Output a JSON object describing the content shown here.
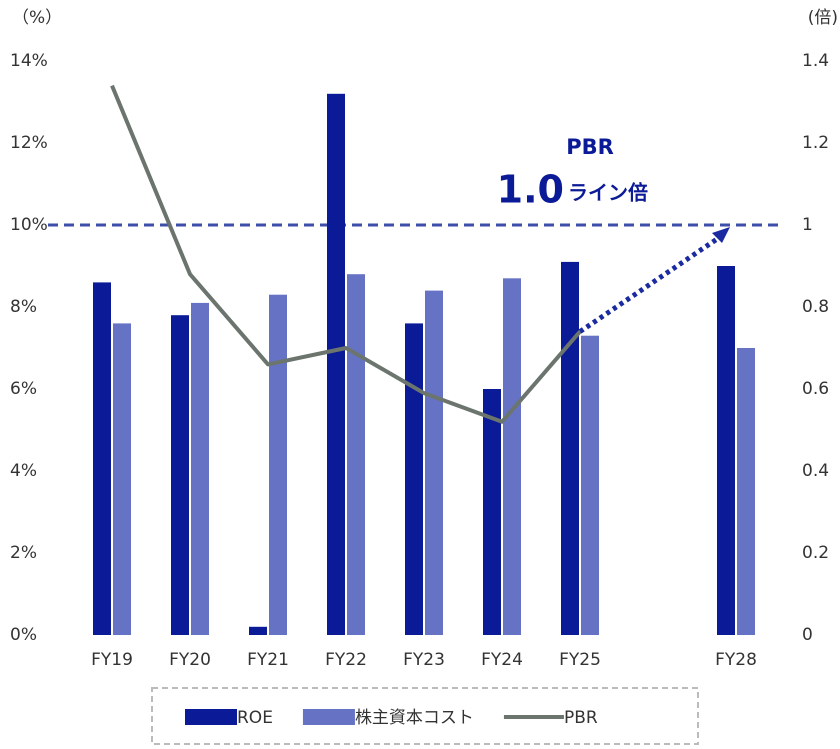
{
  "chart_data": {
    "type": "bar",
    "categories": [
      "FY19",
      "FY20",
      "FY21",
      "FY22",
      "FY23",
      "FY24",
      "FY25",
      null,
      "FY28"
    ],
    "series": [
      {
        "name": "ROE",
        "color": "#0b1a96",
        "values": [
          8.6,
          7.8,
          0.2,
          13.2,
          7.6,
          6.0,
          9.1,
          null,
          9.0
        ]
      },
      {
        "name": "株主資本コスト",
        "color": "#6673c4",
        "values": [
          7.6,
          8.1,
          8.3,
          8.8,
          8.4,
          8.7,
          7.3,
          null,
          7.0
        ]
      },
      {
        "name": "PBR",
        "type": "line",
        "axis": "y2",
        "color": "#6b756e",
        "values": [
          1.34,
          0.88,
          0.66,
          0.7,
          0.59,
          0.52,
          0.74,
          null,
          null
        ]
      }
    ],
    "ylabel": "（%）",
    "y2label": "(倍)",
    "ylim": [
      0,
      14
    ],
    "yticks": [
      {
        "value": 0,
        "label": "0%"
      },
      {
        "value": 2,
        "label": "2%"
      },
      {
        "value": 4,
        "label": "4%"
      },
      {
        "value": 6,
        "label": "6%"
      },
      {
        "value": 8,
        "label": "8%"
      },
      {
        "value": 10,
        "label": "10%"
      },
      {
        "value": 12,
        "label": "12%"
      },
      {
        "value": 14,
        "label": "14%"
      }
    ],
    "y2lim": [
      0,
      1.4
    ],
    "y2ticks": [
      0,
      0.2,
      0.4,
      0.6,
      0.8,
      1,
      1.2,
      1.4
    ],
    "reference_line_y2": 1,
    "annotation": {
      "line1": "PBR",
      "big": "1.0",
      "small": "ライン倍"
    },
    "legend": "bottom"
  }
}
